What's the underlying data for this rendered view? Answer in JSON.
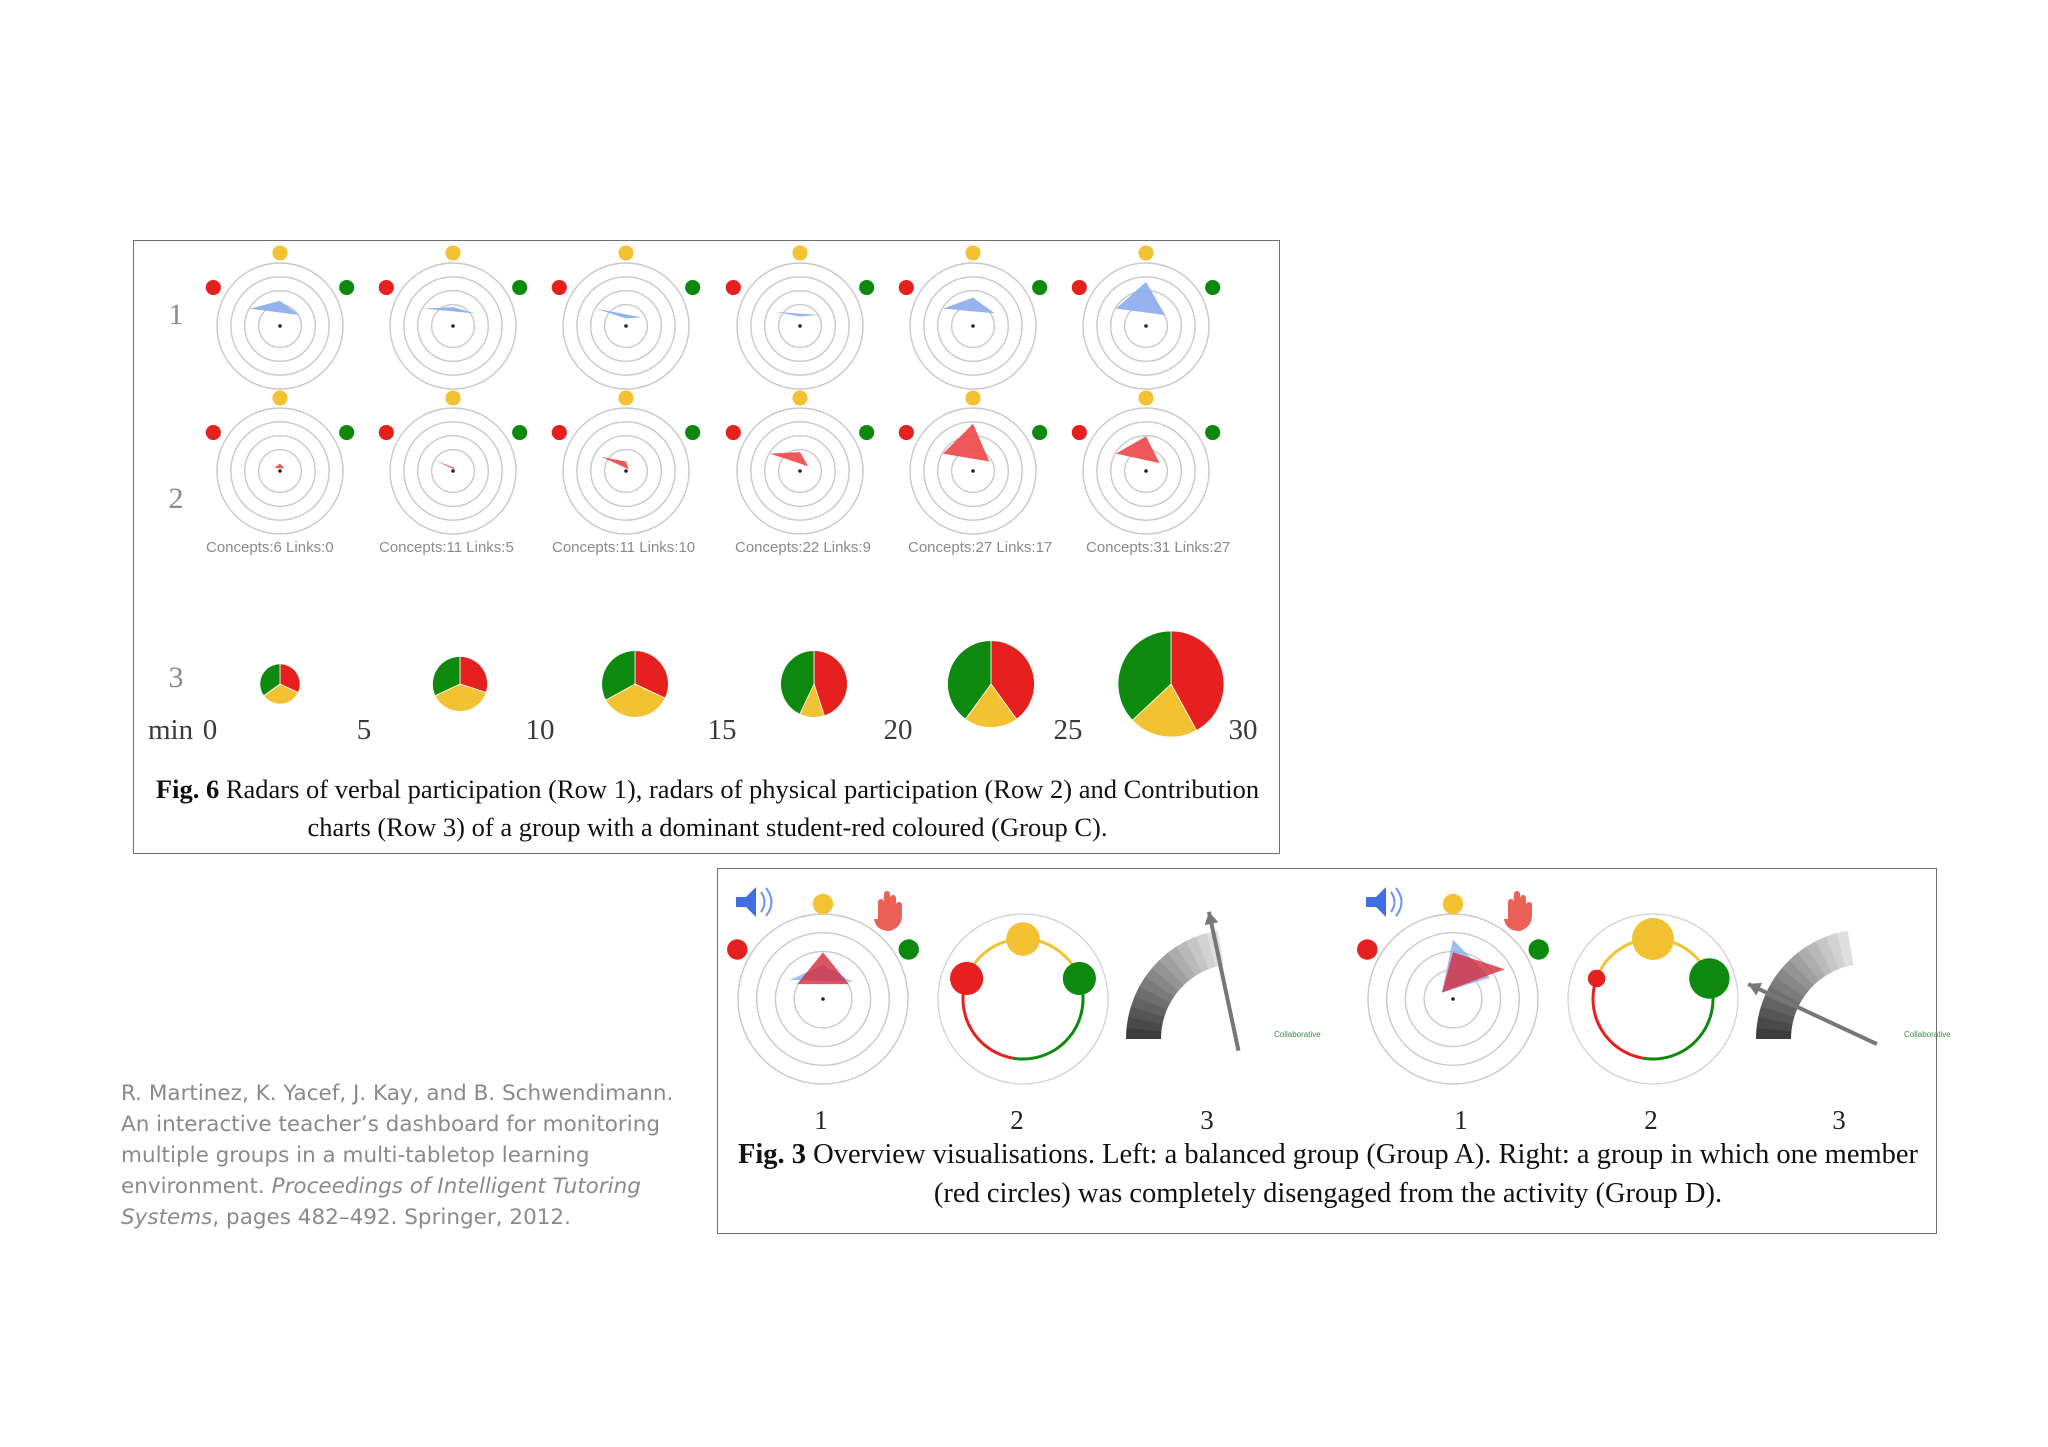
{
  "fig6": {
    "row_labels": [
      "1",
      "2",
      "3"
    ],
    "axis_prefix": "min",
    "minutes": [
      "0",
      "5",
      "10",
      "15",
      "20",
      "25",
      "30"
    ],
    "concept_labels": [
      "Concepts:6 Links:0",
      "Concepts:11 Links:5",
      "Concepts:11 Links:10",
      "Concepts:22 Links:9",
      "Concepts:27 Links:17",
      "Concepts:31 Links:27"
    ],
    "caption_label": "Fig. 6",
    "caption_text": " Radars of verbal participation (Row 1), radars of physical participation (Row 2) and Contribution charts (Row 3) of a group with a dominant student-red coloured (Group C).",
    "colors": {
      "verbal": "#8fb0ee",
      "physical": "#ee4a4a",
      "red": "#e61f1f",
      "green": "#0d8a0d",
      "yellow": "#f3c233"
    },
    "chart_data": [
      {
        "type": "radar",
        "row": "1",
        "axes": [
          "yellow",
          "red",
          "green"
        ],
        "series": [
          {
            "values": [
              0.4,
              0.55,
              0.35
            ]
          },
          {
            "values": [
              0.3,
              0.55,
              0.4
            ]
          },
          {
            "values": [
              0.12,
              0.55,
              0.28
            ]
          },
          {
            "values": [
              0.15,
              0.45,
              0.35
            ]
          },
          {
            "values": [
              0.45,
              0.55,
              0.4
            ]
          },
          {
            "values": [
              0.7,
              0.55,
              0.35
            ]
          }
        ]
      },
      {
        "type": "radar",
        "row": "2",
        "axes": [
          "yellow",
          "red",
          "green"
        ],
        "series": [
          {
            "values": [
              0.12,
              0.1,
              0.08
            ]
          },
          {
            "values": [
              0.06,
              0.35,
              0.04
            ]
          },
          {
            "values": [
              0.15,
              0.45,
              0.05
            ]
          },
          {
            "values": [
              0.3,
              0.55,
              0.15
            ]
          },
          {
            "values": [
              0.75,
              0.55,
              0.3
            ]
          },
          {
            "values": [
              0.55,
              0.55,
              0.25
            ]
          }
        ]
      },
      {
        "type": "pie",
        "row": "3",
        "x": [
          2.5,
          7.5,
          12.5,
          17.5,
          22.5,
          27.5
        ],
        "categories": [
          "red",
          "yellow",
          "green"
        ],
        "series": [
          {
            "values": [
              0.32,
              0.33,
              0.35
            ],
            "size": 0.38
          },
          {
            "values": [
              0.3,
              0.38,
              0.32
            ],
            "size": 0.52
          },
          {
            "values": [
              0.32,
              0.35,
              0.33
            ],
            "size": 0.63
          },
          {
            "values": [
              0.45,
              0.12,
              0.43
            ],
            "size": 0.63
          },
          {
            "values": [
              0.4,
              0.2,
              0.4
            ],
            "size": 0.82
          },
          {
            "values": [
              0.42,
              0.21,
              0.37
            ],
            "size": 1.0
          }
        ]
      }
    ]
  },
  "fig3": {
    "indices": [
      "1",
      "2",
      "3",
      "1",
      "2",
      "3"
    ],
    "collab_label": "Collaborative",
    "caption_label": "Fig. 3",
    "caption_text": " Overview visualisations. Left: a balanced group (Group A). Right: a group in which one member (red circles) was completely disengaged from the activity (Group D).",
    "left_group": {
      "radar_verbal": [
        0.4,
        0.45,
        0.4
      ],
      "radar_physical": [
        0.55,
        0.35,
        0.35
      ],
      "balance": {
        "yellow": 0.34,
        "red": 0.33,
        "green": 0.33
      },
      "gauge": 0.78
    },
    "right_group": {
      "radar_verbal": [
        0.7,
        0.15,
        0.5
      ],
      "radar_physical": [
        0.55,
        0.15,
        0.7
      ],
      "balance": {
        "yellow": 0.5,
        "red": 0.03,
        "green": 0.47
      },
      "gauge": 0.25
    }
  },
  "citation": {
    "authors": "R. Martinez, K. Yacef, J. Kay, and B. Schwendimann.",
    "title": "An interactive teacher’s dashboard for monitoring multiple groups in a multi-tabletop learning environment.",
    "venue": "Proceedings of Intelligent Tutoring Systems",
    "pages": ", pages 482–492. Springer, 2012."
  }
}
